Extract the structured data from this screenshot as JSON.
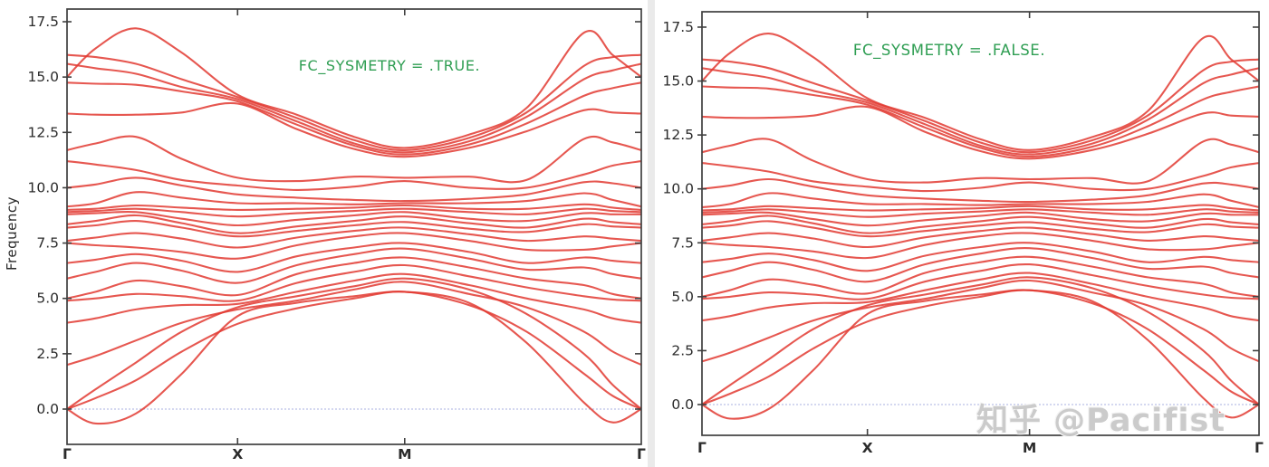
{
  "watermark": {
    "text": "知乎 @Pacifist",
    "color": "#c9c9c9"
  },
  "colors": {
    "band": "#e23a31",
    "frame": "#3f3f3f",
    "tick_text": "#2b2b2b",
    "annotation_green": "#2f9e53",
    "zero_line": "#a9b1e0",
    "background": "#ffffff",
    "divider": "#eaeaea"
  },
  "chart_data": {
    "type": "line",
    "title": "",
    "ylabel": "Frequency",
    "xlabel": "",
    "legend": null,
    "grid": false,
    "ylim": [
      -1.6,
      18.1
    ],
    "y_ticks": [
      {
        "label": "0.0",
        "value": 0.0
      },
      {
        "label": "2.5",
        "value": 2.5
      },
      {
        "label": "5.0",
        "value": 5.0
      },
      {
        "label": "7.5",
        "value": 7.5
      },
      {
        "label": "10.0",
        "value": 10.0
      },
      {
        "label": "12.5",
        "value": 12.5
      },
      {
        "label": "15.0",
        "value": 15.0
      },
      {
        "label": "17.5",
        "value": 17.5
      }
    ],
    "x_ticks": [
      {
        "label": "Γ",
        "t": 0.0
      },
      {
        "label": "X",
        "t": 0.297
      },
      {
        "label": "M",
        "t": 0.588
      },
      {
        "label": "Γ",
        "t": 1.0
      }
    ],
    "zero_line_value": 0.0,
    "subplots": [
      {
        "annotation": "FC_SYSMETRY = .TRUE.",
        "ylabel": "Frequency"
      },
      {
        "annotation": "FC_SYSMETRY = .FALSE.",
        "ylabel": ""
      }
    ],
    "sample_t": [
      0,
      0.05,
      0.12,
      0.2,
      0.297,
      0.4,
      0.5,
      0.588,
      0.7,
      0.8,
      0.9,
      0.95,
      1
    ],
    "bands": [
      [
        15.0,
        16.3,
        17.2,
        16.1,
        14.2,
        13.3,
        12.3,
        11.8,
        12.4,
        13.6,
        17.0,
        16.0,
        15.0
      ],
      [
        16.0,
        15.9,
        15.6,
        14.9,
        14.1,
        13.15,
        12.15,
        11.7,
        12.25,
        13.4,
        15.5,
        15.9,
        16.0
      ],
      [
        15.6,
        15.4,
        15.15,
        14.55,
        14.0,
        13.0,
        12.0,
        11.6,
        12.1,
        13.2,
        14.9,
        15.3,
        15.6
      ],
      [
        14.75,
        14.7,
        14.65,
        14.35,
        13.9,
        12.85,
        11.9,
        11.5,
        11.95,
        12.9,
        14.15,
        14.5,
        14.75
      ],
      [
        13.35,
        13.3,
        13.3,
        13.4,
        13.8,
        12.65,
        11.75,
        11.4,
        11.8,
        12.55,
        13.5,
        13.4,
        13.35
      ],
      [
        11.7,
        12.0,
        12.3,
        11.3,
        10.45,
        10.3,
        10.5,
        10.45,
        10.5,
        10.35,
        12.2,
        12.05,
        11.7
      ],
      [
        11.2,
        11.05,
        10.8,
        10.35,
        10.1,
        9.9,
        10.05,
        10.3,
        10.0,
        10.0,
        10.6,
        11.0,
        11.2
      ],
      [
        10.0,
        10.15,
        10.45,
        10.1,
        9.7,
        9.55,
        9.45,
        9.4,
        9.5,
        9.7,
        10.25,
        10.2,
        10.0
      ],
      [
        9.15,
        9.3,
        9.8,
        9.55,
        9.3,
        9.3,
        9.25,
        9.3,
        9.3,
        9.4,
        9.75,
        9.45,
        9.15
      ],
      [
        9.0,
        9.05,
        9.2,
        9.1,
        9.0,
        9.05,
        9.1,
        9.2,
        9.05,
        9.05,
        9.25,
        9.1,
        9.0
      ],
      [
        8.9,
        8.95,
        9.05,
        8.9,
        8.7,
        8.85,
        8.95,
        9.05,
        8.9,
        8.8,
        9.05,
        8.95,
        8.9
      ],
      [
        8.8,
        8.85,
        8.9,
        8.6,
        8.3,
        8.55,
        8.75,
        8.9,
        8.6,
        8.5,
        8.85,
        8.8,
        8.8
      ],
      [
        8.35,
        8.5,
        8.75,
        8.4,
        7.95,
        8.25,
        8.5,
        8.7,
        8.4,
        8.2,
        8.6,
        8.45,
        8.35
      ],
      [
        8.2,
        8.3,
        8.5,
        8.2,
        7.8,
        8.05,
        8.3,
        8.45,
        8.15,
        8.0,
        8.35,
        8.25,
        8.2
      ],
      [
        7.6,
        7.75,
        7.95,
        7.7,
        7.3,
        7.75,
        8.05,
        8.2,
        7.9,
        7.6,
        7.8,
        7.7,
        7.6
      ],
      [
        7.5,
        7.4,
        7.3,
        7.1,
        6.8,
        7.4,
        7.8,
        7.95,
        7.6,
        7.2,
        7.2,
        7.35,
        7.5
      ],
      [
        6.6,
        6.75,
        7.0,
        6.7,
        6.2,
        6.9,
        7.3,
        7.5,
        7.1,
        6.6,
        6.85,
        6.7,
        6.6
      ],
      [
        5.9,
        6.2,
        6.6,
        6.25,
        5.7,
        6.5,
        7.0,
        7.25,
        6.8,
        6.3,
        6.4,
        6.1,
        5.9
      ],
      [
        5.0,
        5.3,
        5.8,
        5.55,
        5.15,
        6.1,
        6.6,
        6.85,
        6.4,
        5.9,
        5.6,
        5.2,
        5.0
      ],
      [
        4.9,
        5.0,
        5.2,
        5.1,
        4.9,
        5.7,
        6.2,
        6.5,
        6.0,
        5.5,
        5.1,
        4.95,
        4.9
      ],
      [
        3.9,
        4.1,
        4.5,
        4.7,
        4.75,
        5.3,
        5.8,
        6.1,
        5.6,
        5.0,
        4.5,
        4.1,
        3.9
      ],
      [
        2.0,
        2.4,
        3.1,
        3.9,
        4.5,
        4.9,
        5.4,
        5.75,
        5.2,
        4.6,
        3.5,
        2.6,
        2.0
      ],
      [
        0.0,
        0.9,
        2.1,
        3.5,
        4.6,
        5.1,
        5.55,
        5.9,
        5.4,
        4.3,
        2.5,
        1.1,
        0.0
      ],
      [
        0.0,
        0.5,
        1.3,
        2.6,
        3.85,
        4.55,
        5.0,
        5.3,
        4.7,
        3.5,
        1.6,
        0.6,
        0.0
      ],
      [
        0.0,
        -0.65,
        -0.2,
        1.6,
        4.2,
        4.8,
        5.1,
        5.3,
        4.8,
        3.0,
        0.3,
        -0.6,
        0.0
      ]
    ]
  }
}
